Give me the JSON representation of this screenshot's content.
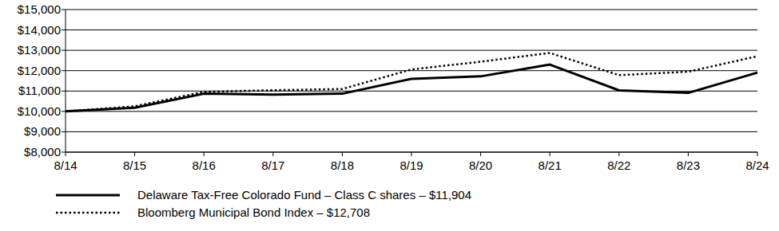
{
  "chart_data": {
    "type": "line",
    "categories": [
      "8/14",
      "8/15",
      "8/16",
      "8/17",
      "8/18",
      "8/19",
      "8/20",
      "8/21",
      "8/22",
      "8/23",
      "8/24"
    ],
    "series": [
      {
        "name": "Delaware Tax-Free Colorado Fund – Class C shares – $11,904",
        "color": "#000000",
        "line_style": "solid",
        "values": [
          10000,
          10180,
          10870,
          10830,
          10870,
          11600,
          11720,
          12300,
          11030,
          10910,
          11904
        ]
      },
      {
        "name": "Bloomberg Municipal Bond Index – $12,708",
        "color": "#000000",
        "line_style": "dotted",
        "values": [
          10000,
          10250,
          10960,
          11040,
          11100,
          12060,
          12440,
          12870,
          11780,
          11950,
          12708
        ]
      }
    ],
    "ylim": [
      8000,
      15000
    ],
    "yticks": [
      {
        "value": 8000,
        "label": "$8,000"
      },
      {
        "value": 9000,
        "label": "$9,000"
      },
      {
        "value": 10000,
        "label": "$10,000"
      },
      {
        "value": 11000,
        "label": "$11,000"
      },
      {
        "value": 12000,
        "label": "$12,000"
      },
      {
        "value": 13000,
        "label": "$13,000"
      },
      {
        "value": 14000,
        "label": "$14,000"
      },
      {
        "value": 15000,
        "label": "$15,000"
      }
    ],
    "grid": true,
    "legend": "bottom"
  }
}
